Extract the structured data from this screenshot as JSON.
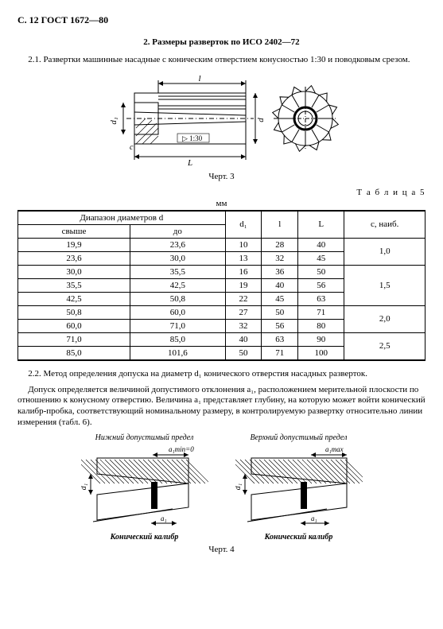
{
  "header": "С. 12 ГОСТ 1672—80",
  "section_title": "2.  Размеры разверток по ИСО 2402—72",
  "para_2_1": "2.1.  Развертки машинные насадные с коническим отверстием конусностью 1:30 и поводковым срезом.",
  "fig3": {
    "caption": "Черт. 3",
    "labels": {
      "l_small": "l",
      "d1": "d₁",
      "c": "c",
      "d": "d",
      "L": "L",
      "taper": "▷ 1:30"
    }
  },
  "table5": {
    "label": "Т а б л и ц а  5",
    "unit": "мм",
    "headers": {
      "range": "Диапазон диаметров d",
      "over": "свыше",
      "to": "до",
      "d1": "d₁",
      "l": "l",
      "L": "L",
      "c": "c, наиб."
    },
    "rows": [
      {
        "over": "19,9",
        "to": "23,6",
        "d1": "10",
        "l": "28",
        "L": "40"
      },
      {
        "over": "23,6",
        "to": "30,0",
        "d1": "13",
        "l": "32",
        "L": "45"
      },
      {
        "over": "30,0",
        "to": "35,5",
        "d1": "16",
        "l": "36",
        "L": "50"
      },
      {
        "over": "35,5",
        "to": "42,5",
        "d1": "19",
        "l": "40",
        "L": "56"
      },
      {
        "over": "42,5",
        "to": "50,8",
        "d1": "22",
        "l": "45",
        "L": "63"
      },
      {
        "over": "50,8",
        "to": "60,0",
        "d1": "27",
        "l": "50",
        "L": "71"
      },
      {
        "over": "60,0",
        "to": "71,0",
        "d1": "32",
        "l": "56",
        "L": "80"
      },
      {
        "over": "71,0",
        "to": "85,0",
        "d1": "40",
        "l": "63",
        "L": "90"
      },
      {
        "over": "85,0",
        "to": "101,6",
        "d1": "50",
        "l": "71",
        "L": "100"
      }
    ],
    "c_groups": [
      {
        "span": 2,
        "val": "1,0"
      },
      {
        "span": 3,
        "val": "1,5"
      },
      {
        "span": 2,
        "val": "2,0"
      },
      {
        "span": 2,
        "val": "2,5"
      }
    ]
  },
  "para_2_2a": "2.2.  Метод определения допуска на диаметр d₁ конического отверстия насадных разверток.",
  "para_2_2b": "Допуск определяется величиной допустимого отклонения a₁, расположением мерительной плоскости по отношению к конусному отверстию. Величина a₁ представляет глубину, на которую может войти конический калибр-пробка, соответствующий номинальному размеру, в контролируемую развертку относительно линии измерения (табл. 6).",
  "fig4": {
    "caption": "Черт. 4",
    "left": {
      "title": "Нижний допустимый предел",
      "top_label": "a₁min=0",
      "side_label": "d₁",
      "bottom_dim": "a₁",
      "bottom": "Конический калибр"
    },
    "right": {
      "title": "Верхний допустимый предел",
      "top_label": "a₁max",
      "side_label": "d₁",
      "bottom_dim": "a₁",
      "bottom": "Конический калибр"
    }
  }
}
